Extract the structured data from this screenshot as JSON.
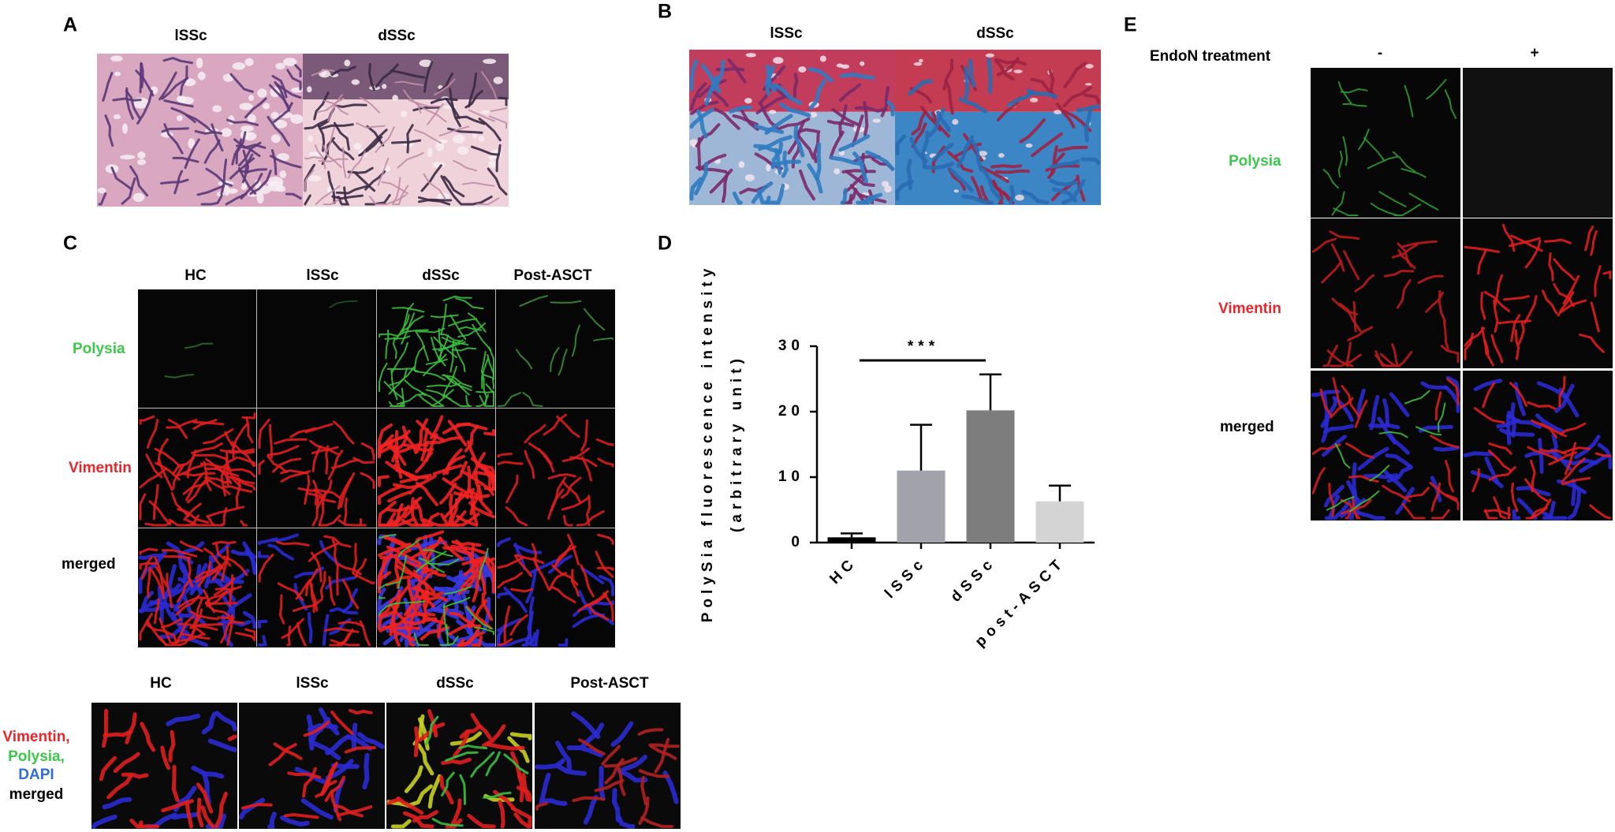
{
  "panels": {
    "A": {
      "label": "A",
      "columns": [
        "lSSc",
        "dSSc"
      ]
    },
    "B": {
      "label": "B",
      "columns": [
        "lSSc",
        "dSSc"
      ]
    },
    "C": {
      "label": "C",
      "columns": [
        "HC",
        "lSSc",
        "dSSc",
        "Post-ASCT"
      ],
      "rows": [
        "Polysia",
        "Vimentin",
        "merged"
      ]
    },
    "C_bottom": {
      "columns": [
        "HC",
        "lSSc",
        "dSSc",
        "Post-ASCT"
      ],
      "legend": [
        "Vimentin,",
        "Polysia,",
        "DAPI",
        "merged"
      ]
    },
    "E": {
      "label": "E",
      "treatment": "EndoN treatment",
      "columns": [
        "-",
        "+"
      ],
      "rows": [
        "Polysia",
        "Vimentin",
        "merged"
      ]
    }
  },
  "chart_data": {
    "type": "bar",
    "panel_label": "D",
    "ylabel": [
      "PolySia fluorescence intensity",
      "(arbitrary unit)"
    ],
    "categories": [
      "HC",
      "lSSc",
      "dSSc",
      "post-ASCT"
    ],
    "values": [
      0.8,
      11,
      20.2,
      6.3
    ],
    "errors": [
      0.6,
      7,
      5.5,
      2.4
    ],
    "colors": [
      "#000000",
      "#a2a2aa",
      "#7d7d7d",
      "#d4d4d4"
    ],
    "ylim": [
      0,
      30
    ],
    "yticks": [
      0,
      10,
      20,
      30
    ],
    "annotation": "***"
  }
}
